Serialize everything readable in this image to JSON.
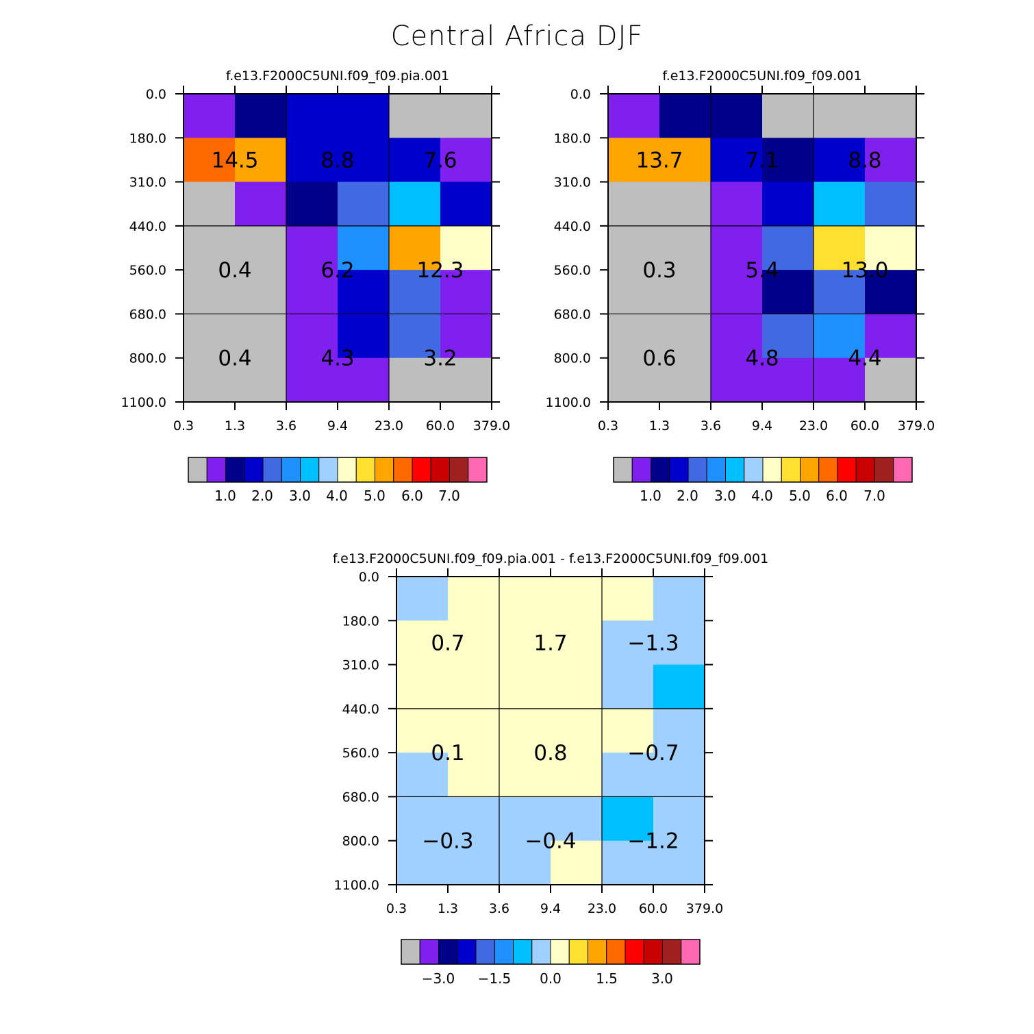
{
  "title": "Central Africa DJF",
  "palettes": {
    "fifteen": [
      "#bebebe",
      "#8020ef",
      "#00008b",
      "#0000cd",
      "#4169e1",
      "#1e90ff",
      "#00bfff",
      "#a0d0ff",
      "#ffffc8",
      "#ffe030",
      "#ffa500",
      "#ff6a00",
      "#ff0000",
      "#c80000",
      "#a02020",
      "#ff69b4"
    ]
  },
  "chart_data": [
    {
      "id": "left",
      "type": "heatmap",
      "title": "f.e13.F2000C5UNI.f09_f09.pia.001",
      "xlabel": "",
      "ylabel": "",
      "x_tick_labels": [
        "0.3",
        "1.3",
        "3.6",
        "9.4",
        "23.0",
        "60.0",
        "379.0"
      ],
      "y_tick_labels": [
        "0.0",
        "180.0",
        "310.0",
        "440.0",
        "560.0",
        "680.0",
        "800.0",
        "1100.0"
      ],
      "cells": [
        [
          1,
          2,
          3,
          3,
          0,
          0
        ],
        [
          11,
          10,
          3,
          3,
          3,
          1
        ],
        [
          0,
          1,
          2,
          4,
          6,
          3
        ],
        [
          0,
          0,
          1,
          5,
          10,
          8
        ],
        [
          0,
          0,
          1,
          3,
          4,
          1
        ],
        [
          0,
          0,
          1,
          3,
          4,
          1
        ],
        [
          0,
          0,
          1,
          1,
          0,
          0
        ]
      ],
      "box_values": [
        [
          "14.5",
          "8.8",
          "7.6"
        ],
        [
          "0.4",
          "6.2",
          "12.3"
        ],
        [
          "0.4",
          "4.3",
          "3.2"
        ]
      ],
      "colorbar_labels": [
        "1.0",
        "2.0",
        "3.0",
        "4.0",
        "5.0",
        "6.0",
        "7.0"
      ]
    },
    {
      "id": "right",
      "type": "heatmap",
      "title": "f.e13.F2000C5UNI.f09_f09.001",
      "xlabel": "",
      "ylabel": "",
      "x_tick_labels": [
        "0.3",
        "1.3",
        "3.6",
        "9.4",
        "23.0",
        "60.0",
        "379.0"
      ],
      "y_tick_labels": [
        "0.0",
        "180.0",
        "310.0",
        "440.0",
        "560.0",
        "680.0",
        "800.0",
        "1100.0"
      ],
      "cells": [
        [
          1,
          2,
          2,
          0,
          0,
          0
        ],
        [
          10,
          10,
          3,
          2,
          3,
          1
        ],
        [
          0,
          0,
          1,
          3,
          6,
          4
        ],
        [
          0,
          0,
          1,
          4,
          9,
          8
        ],
        [
          0,
          0,
          1,
          2,
          4,
          2
        ],
        [
          0,
          0,
          1,
          4,
          5,
          1
        ],
        [
          0,
          0,
          1,
          1,
          1,
          0
        ]
      ],
      "box_values": [
        [
          "13.7",
          "7.1",
          "8.8"
        ],
        [
          "0.3",
          "5.4",
          "13.0"
        ],
        [
          "0.6",
          "4.8",
          "4.4"
        ]
      ],
      "colorbar_labels": [
        "1.0",
        "2.0",
        "3.0",
        "4.0",
        "5.0",
        "6.0",
        "7.0"
      ]
    },
    {
      "id": "diff",
      "type": "heatmap",
      "title": "f.e13.F2000C5UNI.f09_f09.pia.001 - f.e13.F2000C5UNI.f09_f09.001",
      "xlabel": "",
      "ylabel": "",
      "x_tick_labels": [
        "0.3",
        "1.3",
        "3.6",
        "9.4",
        "23.0",
        "60.0",
        "379.0"
      ],
      "y_tick_labels": [
        "0.0",
        "180.0",
        "310.0",
        "440.0",
        "560.0",
        "680.0",
        "800.0",
        "1100.0"
      ],
      "cells": [
        [
          7,
          8,
          8,
          8,
          8,
          7
        ],
        [
          8,
          8,
          8,
          8,
          7,
          7
        ],
        [
          8,
          8,
          8,
          8,
          7,
          6
        ],
        [
          8,
          8,
          8,
          8,
          8,
          7
        ],
        [
          7,
          8,
          8,
          8,
          7,
          7
        ],
        [
          7,
          7,
          7,
          7,
          6,
          7
        ],
        [
          7,
          7,
          7,
          8,
          7,
          7
        ]
      ],
      "box_values": [
        [
          "0.7",
          "1.7",
          "−1.3"
        ],
        [
          "0.1",
          "0.8",
          "−0.7"
        ],
        [
          "−0.3",
          "−0.4",
          "−1.2"
        ]
      ],
      "colorbar_labels": [
        "−3.0",
        "−1.5",
        "0.0",
        "1.5",
        "3.0"
      ]
    }
  ]
}
